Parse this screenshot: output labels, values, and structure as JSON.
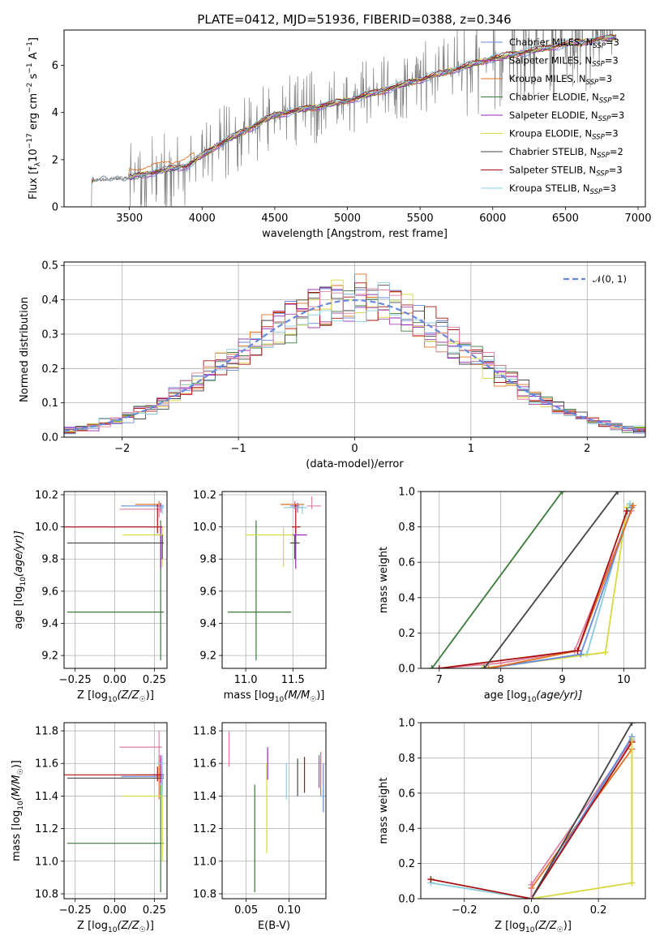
{
  "title": "PLATE=0412, MJD=51936, FIBERID=0388, z=0.346",
  "colors": {
    "chabrier_miles": "#6688dd",
    "salpeter_miles": "#aa44aa",
    "kroupa_miles": "#e07020",
    "chabrier_elodie": "#3a7a3a",
    "salpeter_elodie": "#9922bb",
    "kroupa_elodie": "#d8d840",
    "chabrier_stelib": "#444444",
    "salpeter_stelib": "#aa1111",
    "kroupa_stelib": "#88ccdd",
    "pink": "#e080a0",
    "spectrum": "#808080",
    "normal_curve": "#6688dd"
  },
  "chart_data": [
    {
      "id": "spectrum",
      "type": "line",
      "xlabel": "wavelength [Angstrom, rest frame]",
      "ylabel": "Flux [f_λ 10^-17 erg cm^-2 s^-1 A^-1]",
      "xlim": [
        3050,
        7050
      ],
      "ylim": [
        0,
        7.5
      ],
      "xticks": [
        3500,
        4000,
        4500,
        5000,
        5500,
        6000,
        6500,
        7000
      ],
      "yticks": [
        0,
        2,
        4,
        6
      ],
      "data_range": [
        3230,
        6850
      ],
      "continuum_anchor": {
        "x": [
          3230,
          3500,
          3900,
          4100,
          4500,
          5000,
          5500,
          6000,
          6500,
          6850
        ],
        "y": [
          1.1,
          1.25,
          1.75,
          2.6,
          3.9,
          4.5,
          5.4,
          6.3,
          6.9,
          7.2
        ]
      },
      "legend": [
        {
          "label": "Chabrier MILES, N",
          "sub": "SSP",
          "suffix": "=3",
          "color_key": "chabrier_miles"
        },
        {
          "label": "Salpeter MILES, N",
          "sub": "SSP",
          "suffix": "=3",
          "color_key": "salpeter_miles"
        },
        {
          "label": "Kroupa MILES, N",
          "sub": "SSP",
          "suffix": "=3",
          "color_key": "kroupa_miles"
        },
        {
          "label": "Chabrier ELODIE, N",
          "sub": "SSP",
          "suffix": "=2",
          "color_key": "chabrier_elodie"
        },
        {
          "label": "Salpeter ELODIE, N",
          "sub": "SSP",
          "suffix": "=3",
          "color_key": "salpeter_elodie"
        },
        {
          "label": "Kroupa ELODIE, N",
          "sub": "SSP",
          "suffix": "=3",
          "color_key": "kroupa_elodie"
        },
        {
          "label": "Chabrier STELIB, N",
          "sub": "SSP",
          "suffix": "=2",
          "color_key": "chabrier_stelib"
        },
        {
          "label": "Salpeter STELIB, N",
          "sub": "SSP",
          "suffix": "=3",
          "color_key": "salpeter_stelib"
        },
        {
          "label": "Kroupa STELIB, N",
          "sub": "SSP",
          "suffix": "=3",
          "color_key": "kroupa_stelib"
        }
      ]
    },
    {
      "id": "residuals",
      "type": "line",
      "xlabel": "(data-model)/error",
      "ylabel": "Normed distribution",
      "xlim": [
        -2.5,
        2.5
      ],
      "ylim": [
        0,
        0.51
      ],
      "xticks": [
        -2,
        -1,
        0,
        1,
        2
      ],
      "yticks": [
        0.0,
        0.1,
        0.2,
        0.3,
        0.4,
        0.5
      ],
      "grid": true,
      "legend_label": "𝒩(0, 1)",
      "bin_edges_start": -2.5,
      "bin_width": 0.1,
      "n_bins": 50
    },
    {
      "id": "age_vs_Z",
      "type": "scatter",
      "xlabel": "Z [log10(Z/Z☉)]",
      "ylabel": "age [log10(age/yr)]",
      "xlim": [
        -0.32,
        0.33
      ],
      "ylim": [
        9.12,
        10.22
      ],
      "xticks": [
        -0.25,
        0.0,
        0.25
      ],
      "yticks": [
        9.2,
        9.4,
        9.6,
        9.8,
        10.0,
        10.2
      ],
      "grid": true,
      "points": [
        {
          "color": "chabrier_miles",
          "x": 0.29,
          "y": 10.13,
          "xerr": [
            0.25,
            0.02
          ],
          "yerr": [
            0.02,
            0.02
          ]
        },
        {
          "color": "salpeter_miles",
          "x": 0.29,
          "y": 10.12,
          "xerr": [
            0.02,
            0.02
          ],
          "yerr": [
            0.03,
            0.03
          ]
        },
        {
          "color": "kroupa_miles",
          "x": 0.28,
          "y": 10.14,
          "xerr": [
            0.15,
            0.01
          ],
          "yerr": [
            0.02,
            0.02
          ]
        },
        {
          "color": "pink",
          "x": 0.28,
          "y": 10.11,
          "xerr": [
            0.25,
            0.02
          ],
          "yerr": [
            0.05,
            0.04
          ]
        },
        {
          "color": "chabrier_elodie",
          "x": 0.29,
          "y": 9.47,
          "xerr": [
            0.59,
            0.02
          ],
          "yerr": [
            0.3,
            0.57
          ]
        },
        {
          "color": "salpeter_elodie",
          "x": 0.29,
          "y": 9.95,
          "xerr": [
            0.05,
            0.02
          ],
          "yerr": [
            0.21,
            0.05
          ]
        },
        {
          "color": "kroupa_elodie",
          "x": 0.3,
          "y": 9.95,
          "xerr": [
            0.25,
            0.01
          ],
          "yerr": [
            0.2,
            0.05
          ]
        },
        {
          "color": "chabrier_stelib",
          "x": 0.3,
          "y": 9.9,
          "xerr": [
            0.6,
            0.01
          ],
          "yerr": [
            0.1,
            0.05
          ]
        },
        {
          "color": "salpeter_stelib",
          "x": 0.27,
          "y": 10.0,
          "xerr": [
            0.6,
            0.03
          ],
          "yerr": [
            0.04,
            0.14
          ]
        },
        {
          "color": "kroupa_stelib",
          "x": 0.3,
          "y": 10.12,
          "xerr": [
            0.03,
            0.01
          ],
          "yerr": [
            0.04,
            0.02
          ]
        }
      ]
    },
    {
      "id": "age_vs_mass",
      "type": "scatter",
      "xlabel": "mass [log10(M/M☉)]",
      "xlim": [
        10.75,
        11.85
      ],
      "ylim": [
        9.12,
        10.22
      ],
      "xticks": [
        11.0,
        11.5
      ],
      "yticks": [
        9.2,
        9.4,
        9.6,
        9.8,
        10.0,
        10.2
      ],
      "grid": true,
      "points": [
        {
          "color": "chabrier_miles",
          "x": 11.52,
          "y": 10.13,
          "xerr": [
            0.05,
            0.05
          ],
          "yerr": [
            0.02,
            0.02
          ]
        },
        {
          "color": "salpeter_miles",
          "x": 11.55,
          "y": 10.12,
          "xerr": [
            0.05,
            0.05
          ],
          "yerr": [
            0.03,
            0.03
          ]
        },
        {
          "color": "kroupa_miles",
          "x": 11.52,
          "y": 10.14,
          "xerr": [
            0.15,
            0.1
          ],
          "yerr": [
            0.02,
            0.02
          ]
        },
        {
          "color": "pink",
          "x": 11.7,
          "y": 10.13,
          "xerr": [
            0.05,
            0.1
          ],
          "yerr": [
            0.02,
            0.06
          ]
        },
        {
          "color": "chabrier_elodie",
          "x": 11.11,
          "y": 9.47,
          "xerr": [
            0.3,
            0.37
          ],
          "yerr": [
            0.3,
            0.57
          ]
        },
        {
          "color": "salpeter_elodie",
          "x": 11.53,
          "y": 9.95,
          "xerr": [
            0.05,
            0.12
          ],
          "yerr": [
            0.21,
            0.05
          ]
        },
        {
          "color": "kroupa_elodie",
          "x": 11.4,
          "y": 9.95,
          "xerr": [
            0.4,
            0.1
          ],
          "yerr": [
            0.2,
            0.05
          ]
        },
        {
          "color": "chabrier_stelib",
          "x": 11.52,
          "y": 9.9,
          "xerr": [
            0.05,
            0.05
          ],
          "yerr": [
            0.1,
            0.05
          ]
        },
        {
          "color": "salpeter_stelib",
          "x": 11.53,
          "y": 10.0,
          "xerr": [
            0.04,
            0.05
          ],
          "yerr": [
            0.04,
            0.14
          ]
        },
        {
          "color": "kroupa_stelib",
          "x": 11.6,
          "y": 10.12,
          "xerr": [
            0.2,
            0.05
          ],
          "yerr": [
            0.04,
            0.02
          ]
        }
      ]
    },
    {
      "id": "massweight_vs_age",
      "type": "line",
      "xlabel": "age [log10(age/yr)]",
      "ylabel": "mass weight",
      "xlim": [
        6.7,
        10.35
      ],
      "ylim": [
        0,
        1.0
      ],
      "xticks": [
        7,
        8,
        9,
        10
      ],
      "yticks": [
        0.0,
        0.2,
        0.4,
        0.6,
        0.8,
        1.0
      ],
      "grid": true,
      "series": [
        {
          "color": "pink",
          "x": [
            7.0,
            8.0,
            9.2,
            10.12
          ],
          "y": [
            0.0,
            0.03,
            0.1,
            0.89
          ]
        },
        {
          "color": "kroupa_stelib",
          "x": [
            7.7,
            9.4,
            10.1
          ],
          "y": [
            0.0,
            0.08,
            0.93
          ]
        },
        {
          "color": "kroupa_elodie",
          "x": [
            7.7,
            9.7,
            10.05
          ],
          "y": [
            0.0,
            0.09,
            0.91
          ]
        },
        {
          "color": "chabrier_miles",
          "x": [
            7.8,
            9.3,
            10.13
          ],
          "y": [
            0.0,
            0.08,
            0.91
          ]
        },
        {
          "color": "kroupa_miles",
          "x": [
            7.8,
            9.25,
            10.15
          ],
          "y": [
            0.0,
            0.1,
            0.92
          ]
        },
        {
          "color": "salpeter_stelib",
          "x": [
            7.0,
            9.25,
            10.05
          ],
          "y": [
            0.0,
            0.1,
            0.89
          ]
        },
        {
          "color": "chabrier_elodie",
          "x": [
            6.88,
            9.0
          ],
          "y": [
            0.0,
            1.0
          ]
        },
        {
          "color": "chabrier_stelib",
          "x": [
            7.73,
            9.9
          ],
          "y": [
            0.0,
            1.0
          ]
        }
      ]
    },
    {
      "id": "mass_vs_Z",
      "type": "scatter",
      "xlabel": "Z [log10(Z/Z☉)]",
      "ylabel": "mass [log10(M/M☉)]",
      "xlim": [
        -0.32,
        0.33
      ],
      "ylim": [
        10.77,
        11.85
      ],
      "xticks": [
        -0.25,
        0.0,
        0.25
      ],
      "yticks": [
        10.8,
        11.0,
        11.2,
        11.4,
        11.6,
        11.8
      ],
      "grid": true,
      "points": [
        {
          "color": "chabrier_miles",
          "x": 0.29,
          "y": 11.52,
          "xerr": [
            0.25,
            0.02
          ],
          "yerr": [
            0.05,
            0.05
          ]
        },
        {
          "color": "salpeter_miles",
          "x": 0.29,
          "y": 11.53,
          "xerr": [
            0.02,
            0.02
          ],
          "yerr": [
            0.05,
            0.1
          ]
        },
        {
          "color": "kroupa_miles",
          "x": 0.28,
          "y": 11.53,
          "xerr": [
            0.15,
            0.01
          ],
          "yerr": [
            0.15,
            0.12
          ]
        },
        {
          "color": "pink",
          "x": 0.28,
          "y": 11.7,
          "xerr": [
            0.25,
            0.02
          ],
          "yerr": [
            0.1,
            0.1
          ]
        },
        {
          "color": "chabrier_elodie",
          "x": 0.29,
          "y": 11.11,
          "xerr": [
            0.59,
            0.02
          ],
          "yerr": [
            0.3,
            0.36
          ]
        },
        {
          "color": "salpeter_elodie",
          "x": 0.29,
          "y": 11.53,
          "xerr": [
            0.05,
            0.02
          ],
          "yerr": [
            0.05,
            0.12
          ]
        },
        {
          "color": "kroupa_elodie",
          "x": 0.3,
          "y": 11.4,
          "xerr": [
            0.25,
            0.01
          ],
          "yerr": [
            0.4,
            0.1
          ]
        },
        {
          "color": "chabrier_stelib",
          "x": 0.3,
          "y": 11.51,
          "xerr": [
            0.6,
            0.01
          ],
          "yerr": [
            0.05,
            0.05
          ]
        },
        {
          "color": "salpeter_stelib",
          "x": 0.27,
          "y": 11.53,
          "xerr": [
            0.6,
            0.03
          ],
          "yerr": [
            0.04,
            0.05
          ]
        },
        {
          "color": "kroupa_stelib",
          "x": 0.3,
          "y": 11.6,
          "xerr": [
            0.03,
            0.01
          ],
          "yerr": [
            0.2,
            0.05
          ]
        }
      ]
    },
    {
      "id": "mass_vs_ebv",
      "type": "scatter",
      "xlabel": "E(B-V)",
      "xlim": [
        0.022,
        0.143
      ],
      "ylim": [
        10.77,
        11.85
      ],
      "xticks": [
        0.05,
        0.1
      ],
      "yticks": [
        10.8,
        11.0,
        11.2,
        11.4,
        11.6,
        11.8
      ],
      "grid": true,
      "points": [
        {
          "color": "chabrier_miles",
          "x": 0.14,
          "y": 11.5,
          "yerr": [
            0.2,
            0.1
          ]
        },
        {
          "color": "salpeter_miles",
          "x": 0.135,
          "y": 11.55,
          "yerr": [
            0.1,
            0.1
          ]
        },
        {
          "color": "kroupa_miles",
          "x": 0.137,
          "y": 11.55,
          "yerr": [
            0.15,
            0.12
          ]
        },
        {
          "color": "pink",
          "x": 0.03,
          "y": 11.7,
          "yerr": [
            0.12,
            0.1
          ]
        },
        {
          "color": "chabrier_elodie",
          "x": 0.06,
          "y": 11.11,
          "yerr": [
            0.3,
            0.36
          ]
        },
        {
          "color": "salpeter_elodie",
          "x": 0.075,
          "y": 11.6,
          "yerr": [
            0.1,
            0.1
          ]
        },
        {
          "color": "kroupa_elodie",
          "x": 0.074,
          "y": 11.35,
          "yerr": [
            0.3,
            0.25
          ]
        },
        {
          "color": "chabrier_stelib",
          "x": 0.11,
          "y": 11.5,
          "yerr": [
            0.1,
            0.13
          ]
        },
        {
          "color": "salpeter_stelib",
          "x": 0.118,
          "y": 11.52,
          "yerr": [
            0.1,
            0.12
          ]
        },
        {
          "color": "kroupa_stelib",
          "x": 0.097,
          "y": 11.5,
          "yerr": [
            0.12,
            0.1
          ]
        }
      ]
    },
    {
      "id": "massweight_vs_Z",
      "type": "line",
      "xlabel": "Z [log10(Z/Z☉)]",
      "ylabel": "mass weight",
      "xlim": [
        -0.33,
        0.34
      ],
      "ylim": [
        0,
        1.0
      ],
      "xticks": [
        -0.2,
        0.0,
        0.2
      ],
      "yticks": [
        0.0,
        0.2,
        0.4,
        0.6,
        0.8,
        1.0
      ],
      "grid": true,
      "series": [
        {
          "color": "kroupa_stelib",
          "x": [
            -0.3,
            0.0,
            0.3
          ],
          "y": [
            0.09,
            0.0,
            0.91
          ]
        },
        {
          "color": "pink",
          "x": [
            0.0,
            0.3
          ],
          "y": [
            0.08,
            0.9
          ]
        },
        {
          "color": "kroupa_elodie",
          "x": [
            0.0,
            0.3
          ],
          "y": [
            0.0,
            0.09
          ]
        },
        {
          "color": "kroupa_miles",
          "x": [
            0.0,
            0.3
          ],
          "y": [
            0.06,
            0.85
          ]
        },
        {
          "color": "chabrier_miles",
          "x": [
            0.0,
            0.3
          ],
          "y": [
            0.0,
            0.92
          ]
        },
        {
          "color": "salpeter_stelib",
          "x": [
            -0.3,
            0.0,
            0.3
          ],
          "y": [
            0.11,
            0.0,
            0.89
          ]
        },
        {
          "color": "chabrier_stelib",
          "x": [
            0.0,
            0.3
          ],
          "y": [
            0.0,
            1.0
          ]
        }
      ],
      "vertical_bars": [
        {
          "color": "kroupa_elodie",
          "x": 0.3,
          "y": [
            0.08,
            0.92
          ]
        },
        {
          "color": "pink",
          "x": 0.0,
          "y": [
            0.0,
            0.1
          ]
        }
      ]
    }
  ]
}
